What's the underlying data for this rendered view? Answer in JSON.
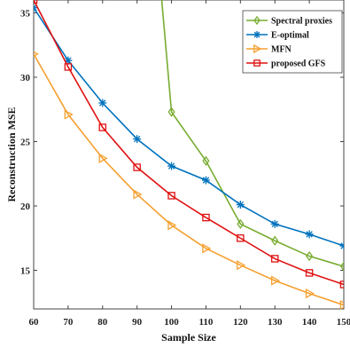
{
  "chart_data": {
    "type": "line",
    "title": "",
    "xlabel": "Sample Size",
    "ylabel": "Reconstruction MSE",
    "xlim": [
      60,
      150
    ],
    "ylim": [
      12,
      36
    ],
    "xticks": [
      60,
      70,
      80,
      90,
      100,
      110,
      120,
      130,
      140,
      150
    ],
    "yticks": [
      15,
      20,
      25,
      30,
      35
    ],
    "grid": false,
    "legend_position": "top-right",
    "x": [
      60,
      70,
      80,
      90,
      100,
      110,
      120,
      130,
      140,
      150
    ],
    "series": [
      {
        "name": "Spectral proxies",
        "color": "#77ac30",
        "marker": "diamond",
        "x": [
          100,
          110,
          120,
          130,
          140,
          150
        ],
        "values": [
          27.3,
          23.5,
          18.6,
          17.3,
          16.1,
          15.3
        ],
        "lead_in": {
          "x": 97,
          "y": 36.5
        }
      },
      {
        "name": "E-optimal",
        "color": "#0072bd",
        "marker": "asterisk",
        "x": [
          60,
          70,
          80,
          90,
          100,
          110,
          120,
          130,
          140,
          150
        ],
        "values": [
          35.4,
          31.3,
          28.0,
          25.2,
          23.1,
          22.0,
          20.1,
          18.6,
          17.8,
          16.9
        ]
      },
      {
        "name": "MFN",
        "color": "#f5a030",
        "marker": "triangle-right",
        "x": [
          60,
          70,
          80,
          90,
          100,
          110,
          120,
          130,
          140,
          150
        ],
        "values": [
          31.8,
          27.1,
          23.7,
          20.9,
          18.5,
          16.7,
          15.4,
          14.2,
          13.2,
          12.3
        ]
      },
      {
        "name": "proposed GFS",
        "color": "#e01010",
        "marker": "square",
        "x": [
          60,
          70,
          80,
          90,
          100,
          110,
          120,
          130,
          140,
          150
        ],
        "values": [
          36.0,
          30.8,
          26.1,
          23.0,
          20.8,
          19.1,
          17.5,
          15.9,
          14.8,
          13.9
        ]
      }
    ]
  }
}
